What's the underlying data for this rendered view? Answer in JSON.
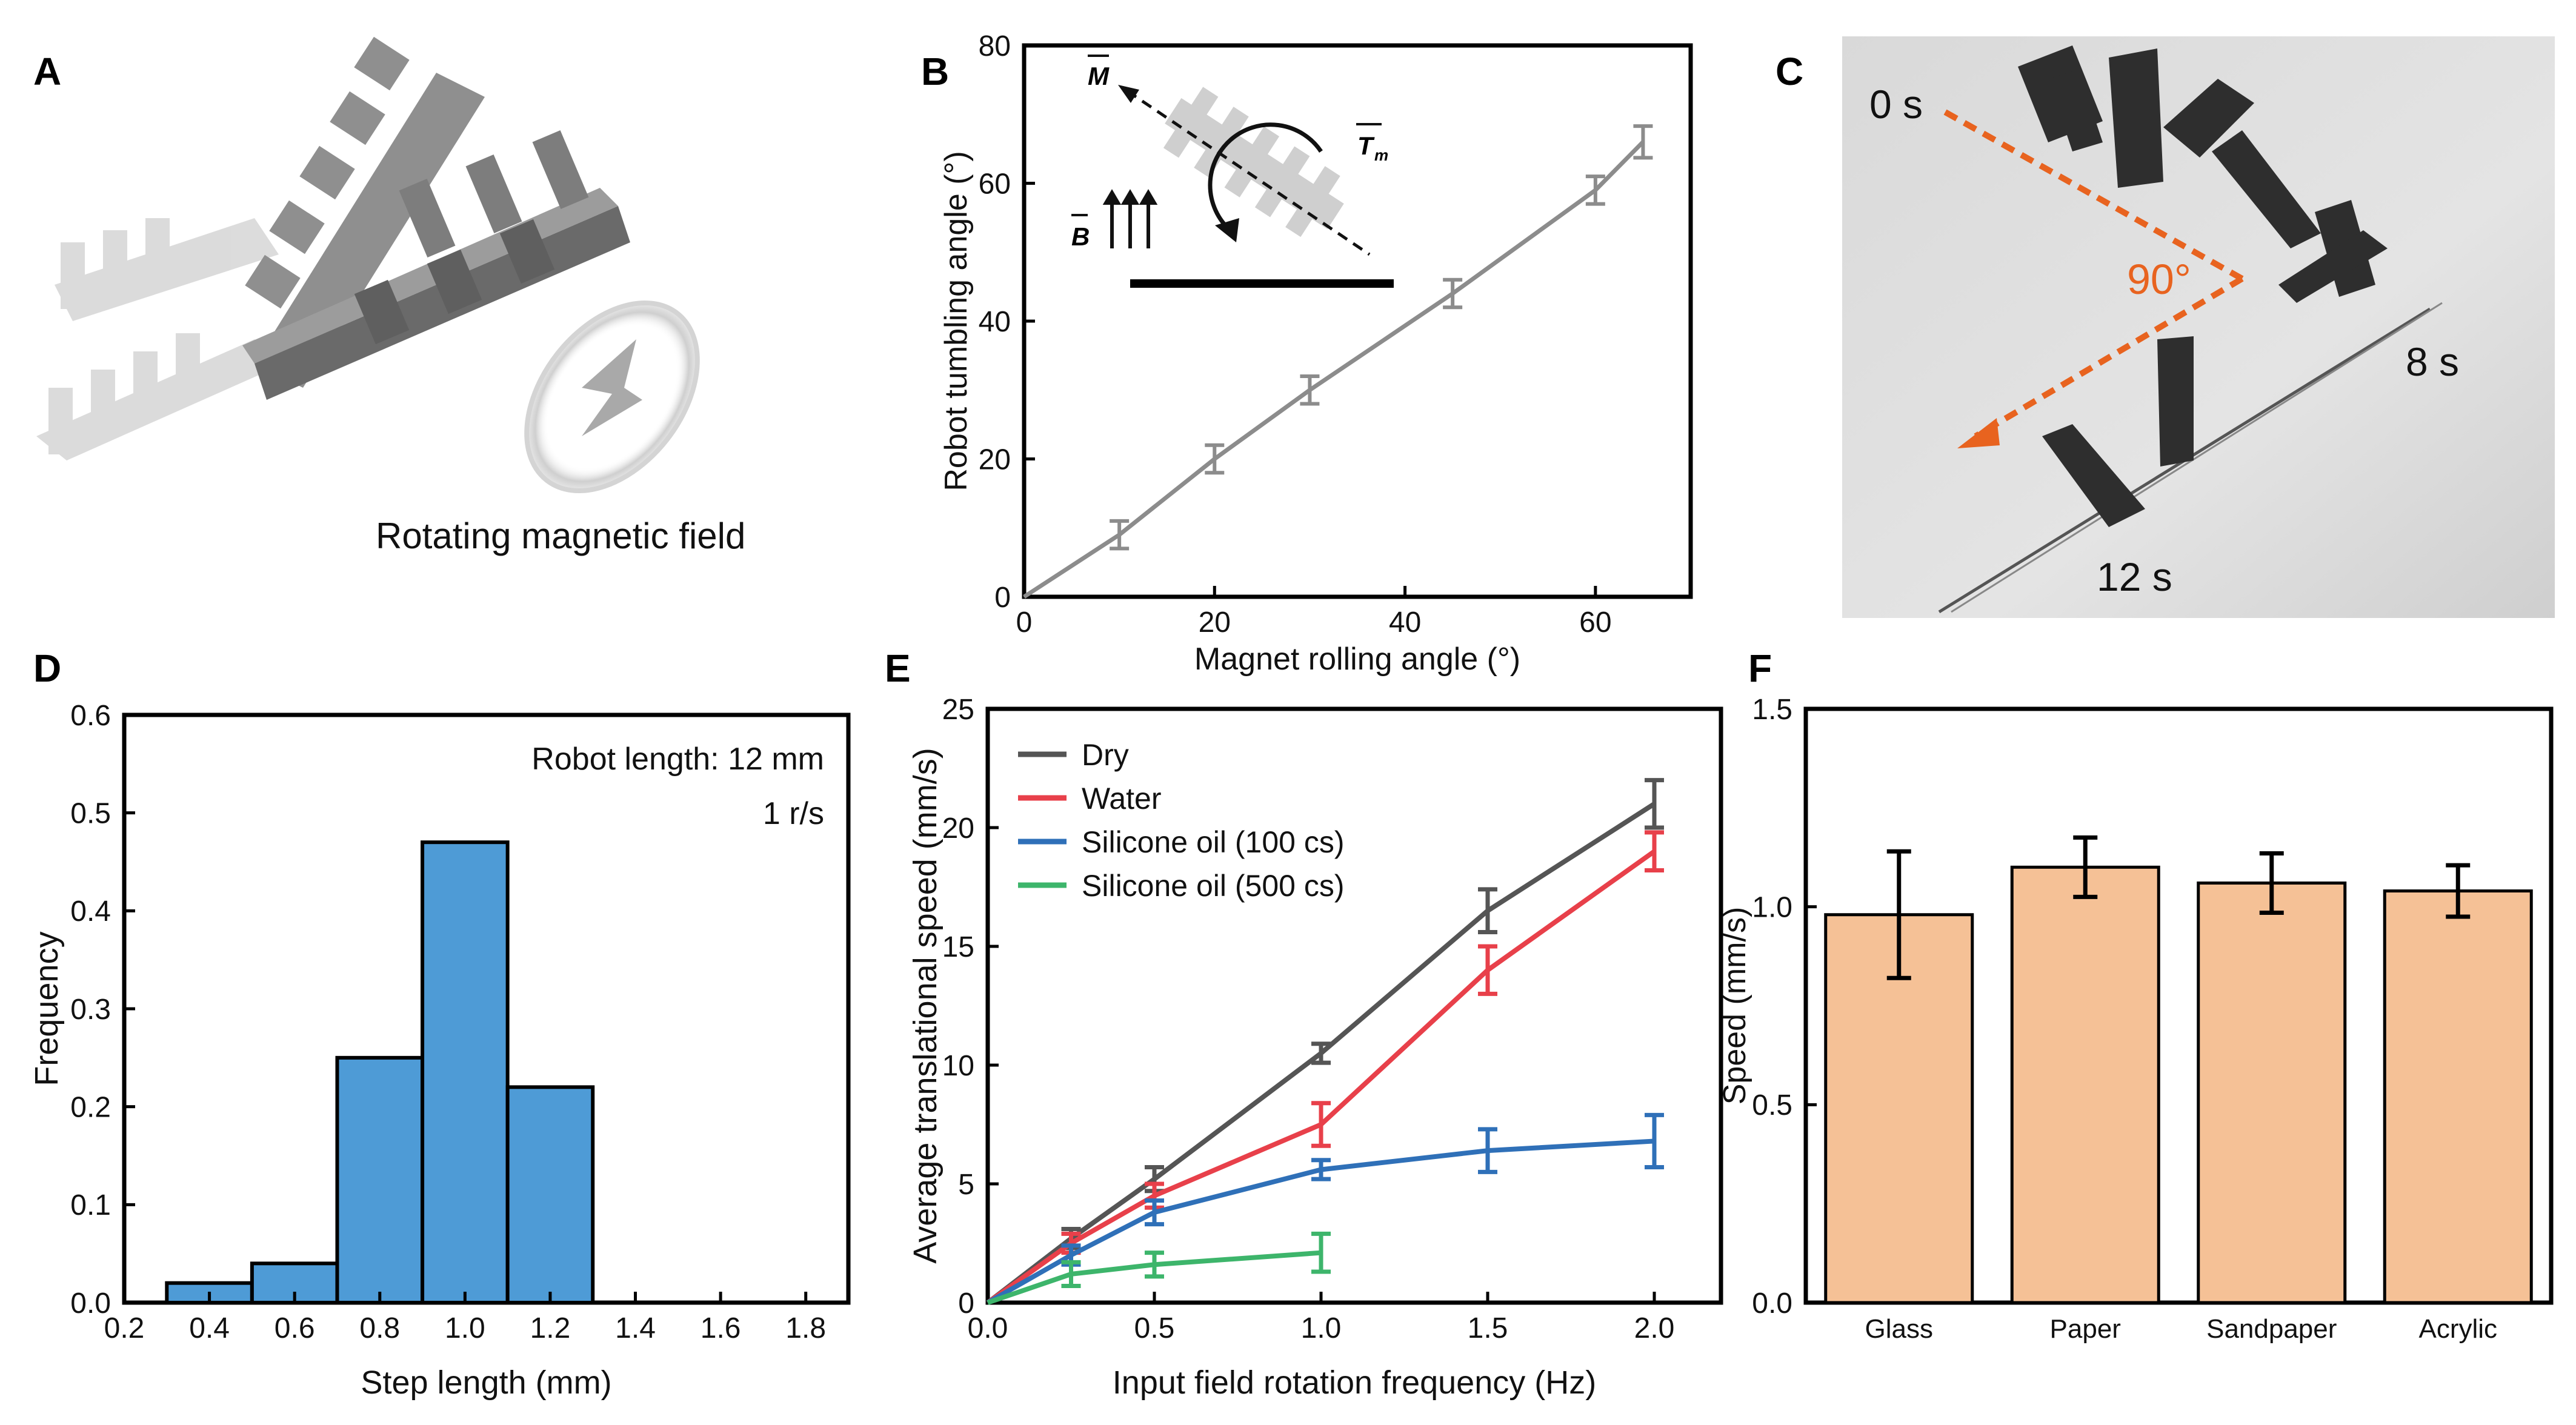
{
  "panels": {
    "A": {
      "label": "A",
      "caption": "Rotating magnetic field"
    },
    "B": {
      "label": "B",
      "inset": {
        "m": "M",
        "tm": "T",
        "tm_sub": "m",
        "b": "B"
      }
    },
    "C": {
      "label": "C",
      "times": [
        "0 s",
        "8 s",
        "12 s"
      ],
      "angle": "90°"
    },
    "D": {
      "label": "D"
    },
    "E": {
      "label": "E"
    },
    "F": {
      "label": "F"
    }
  },
  "colors": {
    "gray_line": "#8c8c8c",
    "hist_bar": "#4e9bd6",
    "bar_orange": "#f5c196",
    "dry": "#555555",
    "water": "#e8404a",
    "silicone100": "#2f70b8",
    "silicone500": "#3db56b",
    "photo_arrow": "#e8631f"
  },
  "chart_data": [
    {
      "id": "B",
      "type": "line",
      "xlabel": "Magnet rolling angle (°)",
      "ylabel": "Robot tumbling angle (°)",
      "xlim": [
        0,
        70
      ],
      "ylim": [
        0,
        80
      ],
      "xticks": [
        0,
        20,
        40,
        60
      ],
      "yticks": [
        0,
        20,
        40,
        60,
        80
      ],
      "x": [
        0,
        10,
        20,
        30,
        45,
        60,
        65
      ],
      "y": [
        0,
        9,
        20,
        30,
        44,
        59,
        66
      ],
      "err": [
        0,
        2,
        2,
        2,
        2,
        2,
        2.3
      ]
    },
    {
      "id": "D",
      "type": "bar",
      "xlabel": "Step length (mm)",
      "ylabel": "Frequency",
      "xlim": [
        0.2,
        1.9
      ],
      "ylim": [
        0,
        0.6
      ],
      "xticks": [
        "0.2",
        "0.4",
        "0.6",
        "0.8",
        "1.0",
        "1.2",
        "1.4",
        "1.6",
        "1.8"
      ],
      "yticks": [
        "0.0",
        "0.1",
        "0.2",
        "0.3",
        "0.4",
        "0.5",
        "0.6"
      ],
      "bin_edges": [
        0.3,
        0.5,
        0.7,
        0.9,
        1.1,
        1.3
      ],
      "values": [
        0.02,
        0.04,
        0.25,
        0.47,
        0.22
      ],
      "annotations": [
        "Robot length: 12 mm",
        "1 r/s"
      ]
    },
    {
      "id": "E",
      "type": "line",
      "xlabel": "Input field rotation frequency (Hz)",
      "ylabel": "Average translational speed (mm/s)",
      "xlim": [
        0,
        2.2
      ],
      "ylim": [
        0,
        25
      ],
      "xticks": [
        "0.0",
        "0.5",
        "1.0",
        "1.5",
        "2.0"
      ],
      "yticks": [
        "0",
        "5",
        "10",
        "15",
        "20",
        "25"
      ],
      "legend_position": "top-left",
      "series": [
        {
          "name": "Dry",
          "x": [
            0,
            0.25,
            0.5,
            1.0,
            1.5,
            2.0
          ],
          "values": [
            0,
            2.7,
            5.2,
            10.5,
            16.5,
            21.0
          ],
          "err": [
            0,
            0.4,
            0.5,
            0.4,
            0.9,
            1.0
          ]
        },
        {
          "name": "Water",
          "x": [
            0,
            0.25,
            0.5,
            1.0,
            1.5,
            2.0
          ],
          "values": [
            0,
            2.5,
            4.5,
            7.5,
            14.0,
            19.0
          ],
          "err": [
            0,
            0.4,
            0.5,
            0.9,
            1.0,
            0.8
          ]
        },
        {
          "name": "Silicone oil (100 cs)",
          "x": [
            0,
            0.25,
            0.5,
            1.0,
            1.5,
            2.0
          ],
          "values": [
            0,
            2.0,
            3.8,
            5.6,
            6.4,
            6.8
          ],
          "err": [
            0,
            0.4,
            0.5,
            0.4,
            0.9,
            1.1
          ]
        },
        {
          "name": "Silicone oil (500 cs)",
          "x": [
            0,
            0.25,
            0.5,
            1.0
          ],
          "values": [
            0,
            1.2,
            1.6,
            2.1
          ],
          "err": [
            0,
            0.5,
            0.5,
            0.8
          ]
        }
      ]
    },
    {
      "id": "F",
      "type": "bar",
      "ylabel": "Speed (mm/s)",
      "ylim": [
        0,
        1.5
      ],
      "yticks": [
        "0.0",
        "0.5",
        "1.0",
        "1.5"
      ],
      "categories": [
        "Glass",
        "Paper",
        "Sandpaper",
        "Acrylic"
      ],
      "values": [
        0.98,
        1.1,
        1.06,
        1.04
      ],
      "err": [
        0.16,
        0.075,
        0.075,
        0.065
      ]
    }
  ]
}
